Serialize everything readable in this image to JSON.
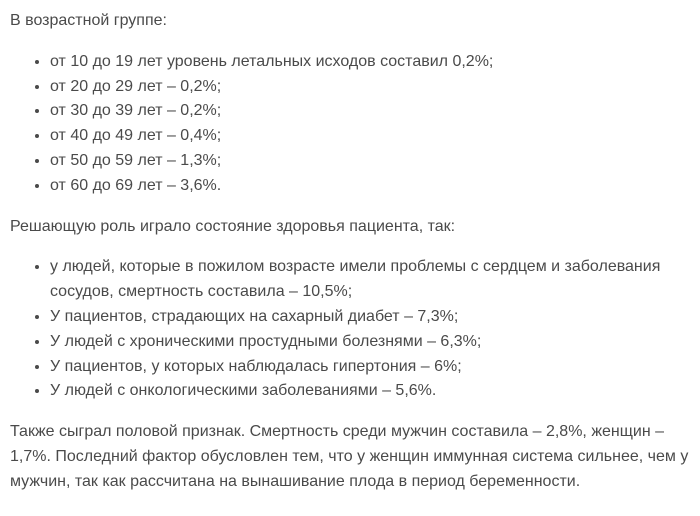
{
  "page": {
    "background_color": "#ffffff",
    "text_color": "#4a4a4a"
  },
  "article": {
    "age_section": {
      "heading": "В возрастной группе:",
      "items": [
        "от 10 до 19 лет уровень летальных исходов составил 0,2%;",
        "от 20 до 29 лет – 0,2%;",
        "от 30 до 39 лет – 0,2%;",
        "от 40 до 49 лет – 0,4%;",
        "от 50 до 59 лет – 1,3%;",
        "от 60 до 69 лет – 3,6%."
      ]
    },
    "health_section": {
      "heading": "Решающую роль играло состояние здоровья пациента, так:",
      "items": [
        "у людей, которые в пожилом возрасте имели проблемы с сердцем и заболевания сосудов, смертность составила – 10,5%;",
        "У пациентов, страдающих на сахарный диабет – 7,3%;",
        "У людей с хроническими простудными болезнями – 6,3%;",
        "У пациентов, у которых наблюдалась гипертония – 6%;",
        "У людей с онкологическими заболеваниями – 5,6%."
      ]
    },
    "gender_paragraph": "Также сыграл половой признак. Смертность среди мужчин составила – 2,8%, женщин – 1,7%. Последний фактор обусловлен тем, что у женщин иммунная система сильнее, чем у мужчин, так как рассчитана на вынашивание плода в период беременности."
  }
}
